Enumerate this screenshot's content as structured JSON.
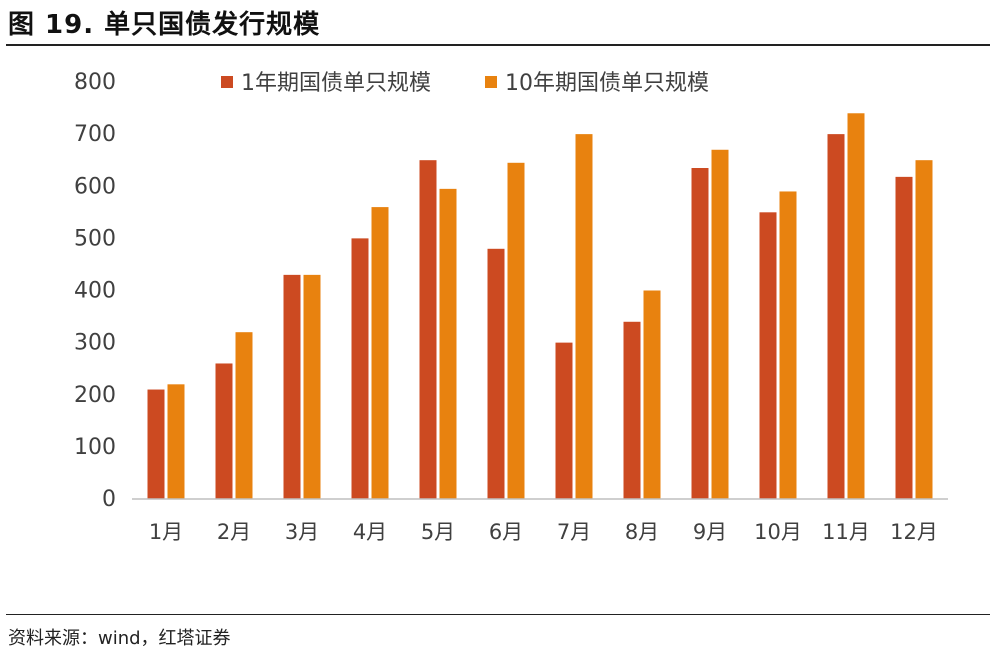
{
  "figure": {
    "title": "图 19. 单只国债发行规模",
    "source": "资料来源：wind，红塔证券"
  },
  "colors": {
    "series_1y": "#CC4A21",
    "series_10y": "#E8820F",
    "axis": "#BFBFBF",
    "text": "#404040"
  },
  "chart_data": {
    "type": "bar",
    "title": "图 19. 单只国债发行规模",
    "xlabel": "",
    "ylabel": "",
    "ylim": [
      0,
      800
    ],
    "yticks": [
      "0",
      "100",
      "200",
      "300",
      "400",
      "500",
      "600",
      "700",
      "800"
    ],
    "grid": false,
    "legend_position": "top",
    "categories": [
      "1月",
      "2月",
      "3月",
      "4月",
      "5月",
      "6月",
      "7月",
      "8月",
      "9月",
      "10月",
      "11月",
      "12月"
    ],
    "series": [
      {
        "name": "1年期国债单只规模",
        "color": "#CC4A21",
        "values": [
          210,
          260,
          430,
          500,
          650,
          480,
          300,
          340,
          635,
          550,
          700,
          618
        ]
      },
      {
        "name": "10年期国债单只规模",
        "color": "#E8820F",
        "values": [
          220,
          320,
          430,
          560,
          595,
          645,
          700,
          400,
          670,
          590,
          740,
          650
        ]
      }
    ]
  }
}
